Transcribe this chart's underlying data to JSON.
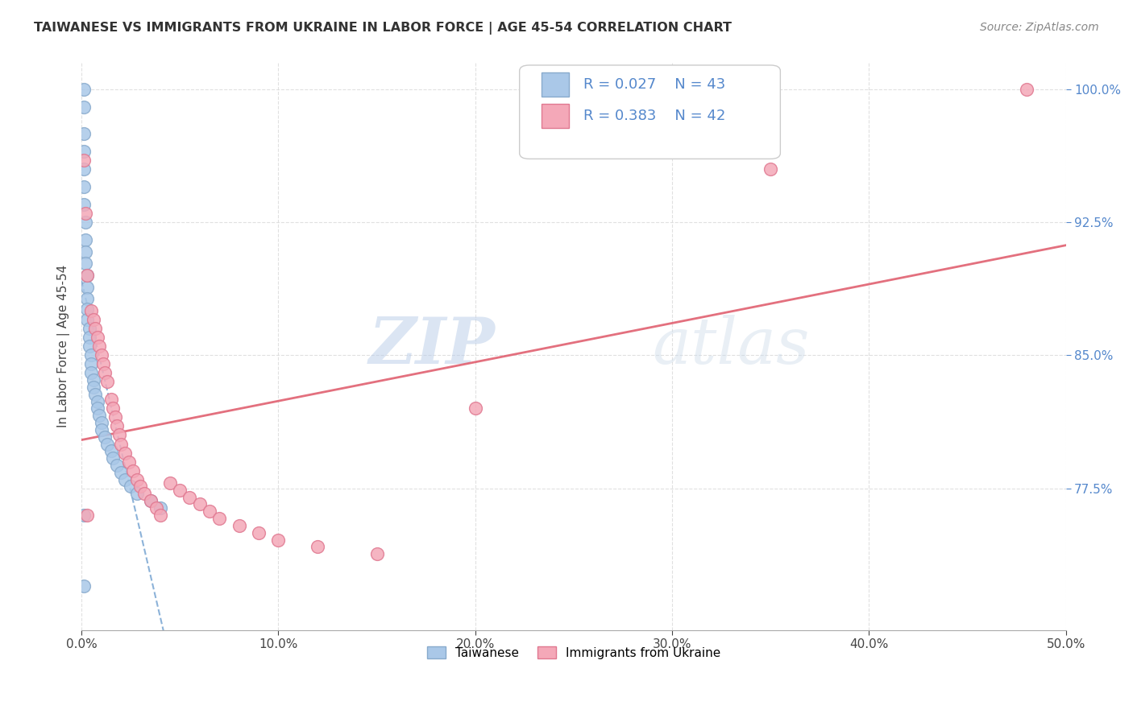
{
  "title": "TAIWANESE VS IMMIGRANTS FROM UKRAINE IN LABOR FORCE | AGE 45-54 CORRELATION CHART",
  "source": "Source: ZipAtlas.com",
  "ylabel": "In Labor Force | Age 45-54",
  "xlim": [
    0.0,
    0.5
  ],
  "ylim": [
    0.695,
    1.015
  ],
  "xticks": [
    0.0,
    0.1,
    0.2,
    0.3,
    0.4,
    0.5
  ],
  "xticklabels": [
    "0.0%",
    "10.0%",
    "20.0%",
    "30.0%",
    "40.0%",
    "50.0%"
  ],
  "yticks": [
    0.775,
    0.85,
    0.925,
    1.0
  ],
  "yticklabels": [
    "77.5%",
    "85.0%",
    "92.5%",
    "100.0%"
  ],
  "grid_color": "#dddddd",
  "background_color": "#ffffff",
  "taiwanese_color": "#aac8e8",
  "ukrainian_color": "#f4a8b8",
  "taiwanese_edge": "#88aacc",
  "ukrainian_edge": "#e07890",
  "trend_taiwanese_color": "#6699cc",
  "trend_ukrainian_color": "#e06070",
  "legend_r1": "R = 0.027",
  "legend_n1": "N = 43",
  "legend_r2": "R = 0.383",
  "legend_n2": "N = 42",
  "legend_label1": "Taiwanese",
  "legend_label2": "Immigrants from Ukraine",
  "watermark_zip": "ZIP",
  "watermark_atlas": "atlas",
  "taiwanese_x": [
    0.001,
    0.001,
    0.001,
    0.001,
    0.001,
    0.001,
    0.001,
    0.002,
    0.002,
    0.002,
    0.002,
    0.003,
    0.003,
    0.003,
    0.003,
    0.003,
    0.004,
    0.004,
    0.004,
    0.005,
    0.005,
    0.005,
    0.006,
    0.006,
    0.007,
    0.008,
    0.008,
    0.009,
    0.01,
    0.01,
    0.012,
    0.013,
    0.015,
    0.016,
    0.018,
    0.02,
    0.022,
    0.025,
    0.028,
    0.035,
    0.04,
    0.001,
    0.001
  ],
  "taiwanese_y": [
    1.0,
    0.99,
    0.975,
    0.965,
    0.955,
    0.945,
    0.935,
    0.925,
    0.915,
    0.908,
    0.902,
    0.895,
    0.888,
    0.882,
    0.876,
    0.87,
    0.865,
    0.86,
    0.855,
    0.85,
    0.845,
    0.84,
    0.836,
    0.832,
    0.828,
    0.824,
    0.82,
    0.816,
    0.812,
    0.808,
    0.804,
    0.8,
    0.796,
    0.792,
    0.788,
    0.784,
    0.78,
    0.776,
    0.772,
    0.768,
    0.764,
    0.76,
    0.72
  ],
  "ukrainian_x": [
    0.001,
    0.002,
    0.003,
    0.003,
    0.005,
    0.006,
    0.007,
    0.008,
    0.009,
    0.01,
    0.011,
    0.012,
    0.013,
    0.015,
    0.016,
    0.017,
    0.018,
    0.019,
    0.02,
    0.022,
    0.024,
    0.026,
    0.028,
    0.03,
    0.032,
    0.035,
    0.038,
    0.04,
    0.045,
    0.05,
    0.055,
    0.06,
    0.065,
    0.07,
    0.08,
    0.09,
    0.1,
    0.12,
    0.15,
    0.2,
    0.35,
    0.48
  ],
  "ukrainian_y": [
    0.96,
    0.93,
    0.895,
    0.76,
    0.875,
    0.87,
    0.865,
    0.86,
    0.855,
    0.85,
    0.845,
    0.84,
    0.835,
    0.825,
    0.82,
    0.815,
    0.81,
    0.805,
    0.8,
    0.795,
    0.79,
    0.785,
    0.78,
    0.776,
    0.772,
    0.768,
    0.764,
    0.76,
    0.778,
    0.774,
    0.77,
    0.766,
    0.762,
    0.758,
    0.754,
    0.75,
    0.746,
    0.742,
    0.738,
    0.82,
    0.955,
    1.0
  ]
}
